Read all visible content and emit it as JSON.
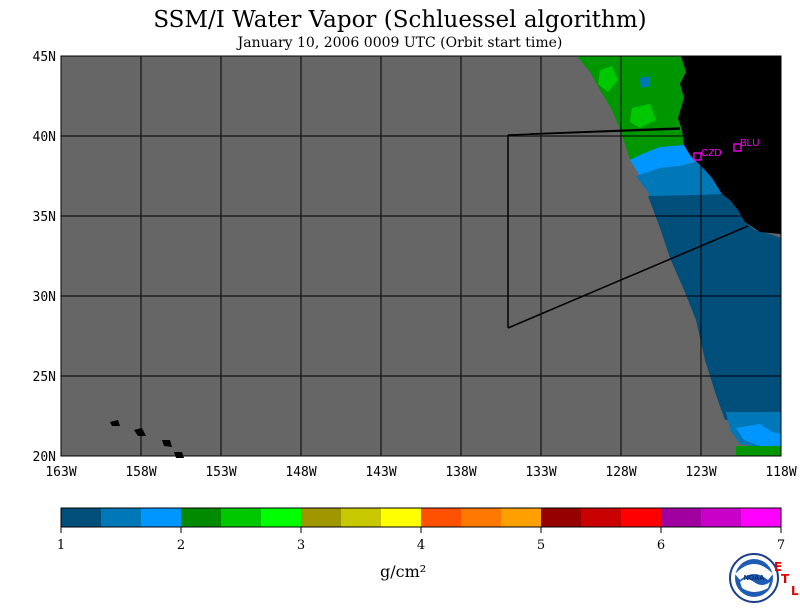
{
  "title": "SSM/I Water Vapor (Schluessel algorithm)",
  "subtitle": "January 10, 2006  0009 UTC  (Orbit start time)",
  "map": {
    "lon_labels": [
      "163W",
      "158W",
      "153W",
      "148W",
      "143W",
      "138W",
      "133W",
      "128W",
      "123W",
      "118W"
    ],
    "lat_labels": [
      "45N",
      "40N",
      "35N",
      "30N",
      "25N",
      "20N"
    ],
    "stations": [
      {
        "id": "CZD"
      },
      {
        "id": "BLU"
      }
    ]
  },
  "colorbar": {
    "ticks": [
      "1",
      "2",
      "3",
      "4",
      "5",
      "6",
      "7"
    ],
    "colors": [
      "#004e7a",
      "#0078b8",
      "#0096ff",
      "#008a00",
      "#00c800",
      "#00ff00",
      "#a09600",
      "#c8c800",
      "#ffff00",
      "#ff5000",
      "#ff7800",
      "#ffa000",
      "#960000",
      "#c80000",
      "#ff0000",
      "#a000a0",
      "#c800c8",
      "#ff00ff"
    ],
    "units": "g/cm²"
  },
  "logo": {
    "text": "NOAA"
  },
  "etl": {
    "e": "E",
    "t": "T",
    "l": "L"
  }
}
